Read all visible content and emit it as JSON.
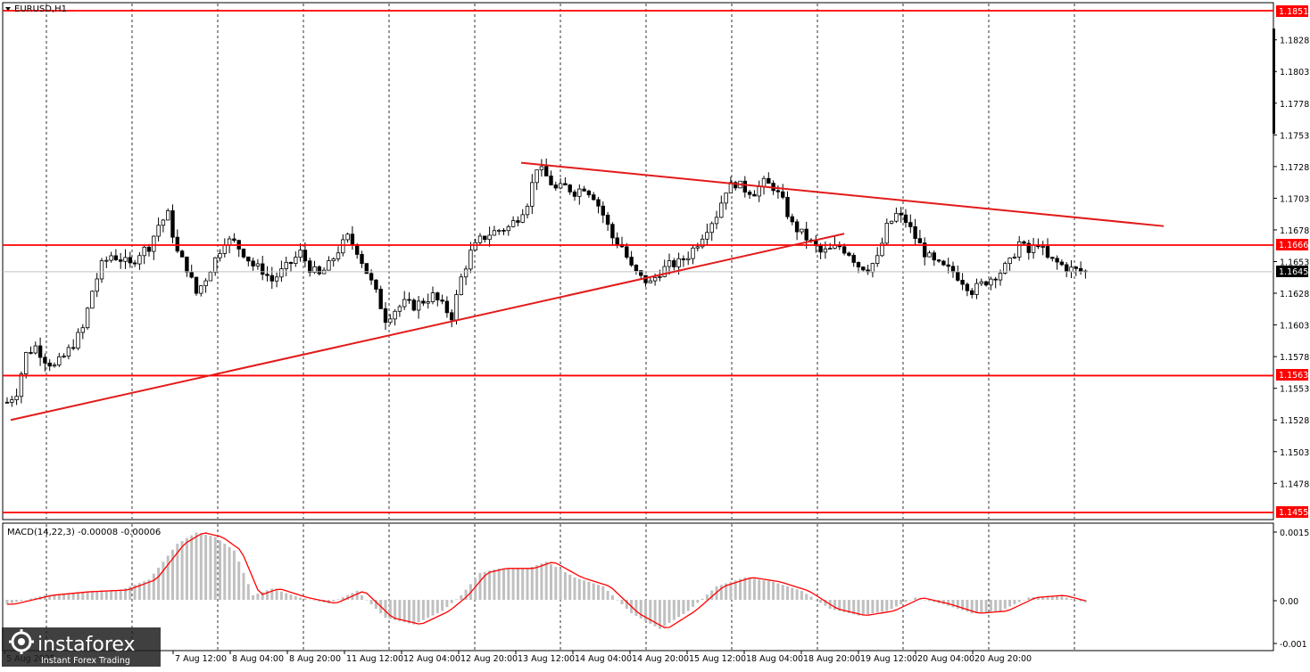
{
  "window": {
    "symbol_title": "EURUSD,H1"
  },
  "price_axis": {
    "ticks": [
      "1.1828",
      "1.1803",
      "1.1778",
      "1.1753",
      "1.1728",
      "1.1703",
      "1.1678",
      "1.1653",
      "1.1628",
      "1.1603",
      "1.1578",
      "1.1553",
      "1.1528",
      "1.1503",
      "1.1478"
    ]
  },
  "levels": {
    "resistance_top": "1.1851",
    "level_mid": "1.1666",
    "current_price": "1.1645",
    "support": "1.1563",
    "bottom": "1.1455"
  },
  "time_axis": {
    "labels": [
      "5 Aug 2025",
      "7 Aug 12:00",
      "8 Aug 04:00",
      "8 Aug 20:00",
      "11 Aug 12:00",
      "12 Aug 04:00",
      "12 Aug 20:00",
      "13 Aug 12:00",
      "14 Aug 04:00",
      "14 Aug 20:00",
      "15 Aug 12:00",
      "18 Aug 04:00",
      "18 Aug 20:00",
      "19 Aug 12:00",
      "20 Aug 04:00",
      "20 Aug 20:00"
    ]
  },
  "macd": {
    "label": "MACD(14,22,3) -0.00008 -0.00006",
    "ticks": [
      "0.00151",
      "0.00",
      "-0.001"
    ]
  },
  "watermark": {
    "brand": "instaforex",
    "tagline": "Instant Forex Trading"
  },
  "colors": {
    "level_line": "#ff0000",
    "trend_line": "#e31a1a",
    "candle": "#000000",
    "macd_bar": "#c0c0c0",
    "macd_signal": "#ff0000"
  },
  "chart_data": {
    "type": "candlestick",
    "symbol": "EURUSD",
    "timeframe": "H1",
    "ylim": [
      1.145,
      1.186
    ],
    "horizontal_levels": [
      1.1851,
      1.1666,
      1.1563,
      1.1455
    ],
    "trendlines": [
      {
        "from": {
          "time": "5 Aug 2025",
          "price": 1.1528
        },
        "to": {
          "time": "18 Aug 20:00",
          "price": 1.1675
        }
      },
      {
        "from": {
          "time": "13 Aug 12:00",
          "price": 1.1731
        },
        "to": {
          "time": "20 Aug 20:00",
          "price": 1.1681
        }
      }
    ],
    "close_path": [
      [
        0,
        1.1542
      ],
      [
        2,
        1.155
      ],
      [
        4,
        1.158
      ],
      [
        6,
        1.1586
      ],
      [
        8,
        1.1576
      ],
      [
        10,
        1.157
      ],
      [
        12,
        1.1578
      ],
      [
        14,
        1.1588
      ],
      [
        16,
        1.16
      ],
      [
        18,
        1.163
      ],
      [
        20,
        1.165
      ],
      [
        22,
        1.1658
      ],
      [
        24,
        1.1655
      ],
      [
        26,
        1.165
      ],
      [
        28,
        1.166
      ],
      [
        30,
        1.1665
      ],
      [
        32,
        1.1682
      ],
      [
        34,
        1.169
      ],
      [
        36,
        1.166
      ],
      [
        38,
        1.1648
      ],
      [
        40,
        1.1628
      ],
      [
        42,
        1.164
      ],
      [
        44,
        1.1655
      ],
      [
        46,
        1.167
      ],
      [
        48,
        1.1668
      ],
      [
        50,
        1.166
      ],
      [
        52,
        1.165
      ],
      [
        54,
        1.1646
      ],
      [
        56,
        1.1638
      ],
      [
        58,
        1.1645
      ],
      [
        60,
        1.1652
      ],
      [
        62,
        1.166
      ],
      [
        64,
        1.1648
      ],
      [
        66,
        1.1642
      ],
      [
        68,
        1.165
      ],
      [
        70,
        1.1662
      ],
      [
        72,
        1.1672
      ],
      [
        74,
        1.1662
      ],
      [
        76,
        1.1645
      ],
      [
        78,
        1.1628
      ],
      [
        80,
        1.1608
      ],
      [
        82,
        1.1615
      ],
      [
        84,
        1.162
      ],
      [
        86,
        1.1618
      ],
      [
        88,
        1.1622
      ],
      [
        90,
        1.1626
      ],
      [
        92,
        1.1618
      ],
      [
        94,
        1.161
      ],
      [
        96,
        1.164
      ],
      [
        98,
        1.166
      ],
      [
        100,
        1.167
      ],
      [
        102,
        1.1675
      ],
      [
        104,
        1.1678
      ],
      [
        106,
        1.168
      ],
      [
        108,
        1.1688
      ],
      [
        110,
        1.17
      ],
      [
        112,
        1.1728
      ],
      [
        114,
        1.172
      ],
      [
        116,
        1.171
      ],
      [
        118,
        1.1712
      ],
      [
        120,
        1.1708
      ],
      [
        122,
        1.1712
      ],
      [
        124,
        1.1705
      ],
      [
        126,
        1.169
      ],
      [
        128,
        1.1672
      ],
      [
        130,
        1.1665
      ],
      [
        132,
        1.1648
      ],
      [
        134,
        1.164
      ],
      [
        136,
        1.1636
      ],
      [
        138,
        1.1645
      ],
      [
        140,
        1.165
      ],
      [
        142,
        1.1652
      ],
      [
        144,
        1.1658
      ],
      [
        146,
        1.1668
      ],
      [
        148,
        1.168
      ],
      [
        150,
        1.169
      ],
      [
        152,
        1.171
      ],
      [
        154,
        1.1715
      ],
      [
        156,
        1.171
      ],
      [
        158,
        1.1708
      ],
      [
        160,
        1.1715
      ],
      [
        162,
        1.1712
      ],
      [
        164,
        1.17
      ],
      [
        166,
        1.1682
      ],
      [
        168,
        1.1675
      ],
      [
        170,
        1.1668
      ],
      [
        172,
        1.166
      ],
      [
        174,
        1.1662
      ],
      [
        176,
        1.1665
      ],
      [
        178,
        1.166
      ],
      [
        180,
        1.165
      ],
      [
        182,
        1.1648
      ],
      [
        184,
        1.1655
      ],
      [
        186,
        1.168
      ],
      [
        188,
        1.169
      ],
      [
        190,
        1.1685
      ],
      [
        192,
        1.1672
      ],
      [
        194,
        1.166
      ],
      [
        196,
        1.1652
      ],
      [
        198,
        1.1648
      ],
      [
        200,
        1.1645
      ],
      [
        202,
        1.1638
      ],
      [
        204,
        1.163
      ],
      [
        206,
        1.1635
      ],
      [
        208,
        1.164
      ],
      [
        210,
        1.1645
      ],
      [
        212,
        1.1652
      ],
      [
        214,
        1.1668
      ],
      [
        216,
        1.166
      ],
      [
        218,
        1.1668
      ],
      [
        220,
        1.1655
      ],
      [
        222,
        1.1652
      ],
      [
        224,
        1.1648
      ],
      [
        226,
        1.1646
      ],
      [
        228,
        1.1645
      ]
    ],
    "macd_path": [
      [
        0,
        -0.0001
      ],
      [
        8,
        0.0001
      ],
      [
        16,
        0.00018
      ],
      [
        24,
        0.00022
      ],
      [
        30,
        0.00045
      ],
      [
        36,
        0.00125
      ],
      [
        40,
        0.0015
      ],
      [
        44,
        0.0014
      ],
      [
        48,
        0.0011
      ],
      [
        52,
        0.0001
      ],
      [
        56,
        0.00025
      ],
      [
        62,
        5e-05
      ],
      [
        68,
        -8e-05
      ],
      [
        74,
        0.0002
      ],
      [
        80,
        -0.0004
      ],
      [
        86,
        -0.00055
      ],
      [
        92,
        -0.00025
      ],
      [
        96,
        0.0001
      ],
      [
        100,
        0.0006
      ],
      [
        104,
        0.0007
      ],
      [
        110,
        0.0007
      ],
      [
        114,
        0.00085
      ],
      [
        120,
        0.0005
      ],
      [
        126,
        0.0003
      ],
      [
        132,
        -0.0003
      ],
      [
        138,
        -0.00065
      ],
      [
        144,
        -0.00025
      ],
      [
        150,
        0.0003
      ],
      [
        156,
        0.0005
      ],
      [
        162,
        0.0004
      ],
      [
        168,
        0.0002
      ],
      [
        174,
        -0.0002
      ],
      [
        180,
        -0.00035
      ],
      [
        186,
        -0.00025
      ],
      [
        192,
        5e-05
      ],
      [
        198,
        -0.0001
      ],
      [
        204,
        -0.0003
      ],
      [
        210,
        -0.00025
      ],
      [
        216,
        5e-05
      ],
      [
        222,
        0.0001
      ],
      [
        228,
        -6e-05
      ]
    ]
  }
}
